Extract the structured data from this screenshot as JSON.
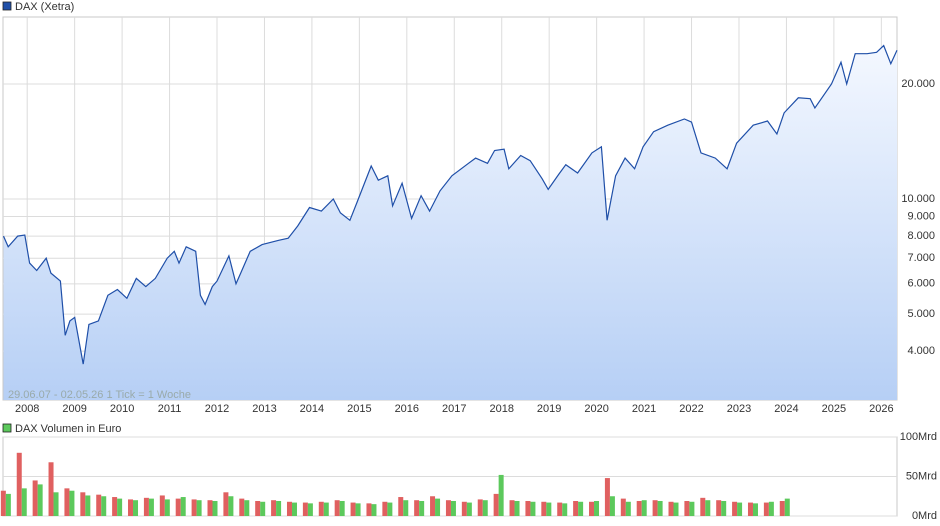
{
  "chart_data": [
    {
      "type": "line",
      "note": "29.06.07 - 02.05.26   1 Tick = 1 Woche",
      "log_scale": true,
      "grid": true,
      "xlim": [
        2007.49,
        2026.33
      ],
      "xticks": [
        2008,
        2009,
        2010,
        2011,
        2012,
        2013,
        2014,
        2015,
        2016,
        2017,
        2018,
        2019,
        2020,
        2021,
        2022,
        2023,
        2024,
        2025,
        2026
      ],
      "ylim": [
        2980,
        29940
      ],
      "yticks": [
        {
          "value": 4000,
          "label": "4.000"
        },
        {
          "value": 5000,
          "label": "5.000"
        },
        {
          "value": 6000,
          "label": "6.000"
        },
        {
          "value": 7000,
          "label": "7.000"
        },
        {
          "value": 8000,
          "label": "8.000"
        },
        {
          "value": 9000,
          "label": "9.000"
        },
        {
          "value": 10000,
          "label": "10.000"
        },
        {
          "value": 20000,
          "label": "20.000"
        }
      ],
      "series": [
        {
          "name": "DAX (Xetra)",
          "color": "#1f4fa8",
          "x": [
            2007.5,
            2007.6,
            2007.8,
            2007.95,
            2008.05,
            2008.2,
            2008.4,
            2008.5,
            2008.7,
            2008.8,
            2008.9,
            2009.0,
            2009.18,
            2009.3,
            2009.5,
            2009.7,
            2009.9,
            2010.1,
            2010.3,
            2010.5,
            2010.7,
            2010.95,
            2011.1,
            2011.2,
            2011.35,
            2011.55,
            2011.65,
            2011.75,
            2011.9,
            2012.0,
            2012.25,
            2012.4,
            2012.5,
            2012.7,
            2012.95,
            2013.3,
            2013.5,
            2013.7,
            2013.95,
            2014.2,
            2014.45,
            2014.6,
            2014.8,
            2014.95,
            2015.25,
            2015.4,
            2015.6,
            2015.7,
            2015.9,
            2016.1,
            2016.3,
            2016.48,
            2016.7,
            2016.95,
            2017.3,
            2017.45,
            2017.7,
            2017.85,
            2018.05,
            2018.15,
            2018.4,
            2018.6,
            2018.85,
            2018.98,
            2019.2,
            2019.35,
            2019.6,
            2019.9,
            2020.1,
            2020.22,
            2020.4,
            2020.6,
            2020.8,
            2020.98,
            2021.2,
            2021.5,
            2021.85,
            2022.0,
            2022.2,
            2022.5,
            2022.75,
            2022.95,
            2023.3,
            2023.6,
            2023.8,
            2023.95,
            2024.25,
            2024.5,
            2024.6,
            2024.95,
            2025.15,
            2025.27,
            2025.45,
            2025.7,
            2025.9,
            2026.05,
            2026.2,
            2026.33
          ],
          "values": [
            8000,
            7500,
            8000,
            8050,
            6800,
            6500,
            7000,
            6400,
            6100,
            4400,
            4800,
            4900,
            3700,
            4700,
            4800,
            5600,
            5800,
            5500,
            6200,
            5900,
            6200,
            7000,
            7300,
            6800,
            7500,
            7300,
            5600,
            5300,
            5900,
            6100,
            7100,
            6000,
            6400,
            7300,
            7600,
            7800,
            7900,
            8500,
            9500,
            9300,
            10000,
            9200,
            8800,
            9800,
            12200,
            11200,
            11500,
            9600,
            11000,
            8900,
            10200,
            9300,
            10500,
            11500,
            12400,
            12800,
            12400,
            13400,
            13500,
            12000,
            13000,
            12600,
            11300,
            10600,
            11600,
            12300,
            11700,
            13200,
            13700,
            8800,
            11500,
            12800,
            12000,
            13700,
            15000,
            15600,
            16200,
            15900,
            13200,
            12800,
            12000,
            14000,
            15600,
            16000,
            14800,
            16800,
            18400,
            18300,
            17300,
            20000,
            22800,
            20000,
            24000,
            24000,
            24200,
            25200,
            22600,
            24500
          ]
        }
      ]
    },
    {
      "type": "bar",
      "legend": "DAX Volumen in Euro",
      "legend_color": "#5cc95c",
      "grid": true,
      "xlim": [
        2007.49,
        2026.33
      ],
      "ylim": [
        0,
        100
      ],
      "yticks": [
        {
          "value": 0,
          "label": "0Mrd"
        },
        {
          "value": 50,
          "label": "50Mrd"
        },
        {
          "value": 100,
          "label": "100Mrd"
        }
      ],
      "x": [
        2007.55,
        2007.885,
        2008.22,
        2008.555,
        2008.89,
        2009.225,
        2009.56,
        2009.895,
        2010.23,
        2010.565,
        2010.9,
        2011.235,
        2011.57,
        2011.905,
        2012.24,
        2012.575,
        2012.91,
        2013.245,
        2013.58,
        2013.915,
        2014.25,
        2014.585,
        2014.92,
        2015.255,
        2015.59,
        2015.925,
        2016.26,
        2016.595,
        2016.93,
        2017.265,
        2017.6,
        2017.935,
        2018.27,
        2018.605,
        2018.94,
        2019.275,
        2019.61,
        2019.945,
        2020.28,
        2020.615,
        2020.95,
        2021.285,
        2021.62,
        2021.955,
        2022.29,
        2022.625,
        2022.96,
        2023.295,
        2023.63,
        2023.965
      ],
      "series": [
        {
          "color": "#e06060",
          "values": [
            32,
            80,
            45,
            68,
            35,
            30,
            27,
            24,
            21,
            23,
            26,
            22,
            21,
            20,
            30,
            22,
            19,
            20,
            18,
            17,
            18,
            20,
            17,
            16,
            18,
            24,
            20,
            25,
            20,
            18,
            21,
            28,
            20,
            19,
            18,
            17,
            19,
            18,
            48,
            22,
            19,
            20,
            18,
            19,
            23,
            20,
            18,
            17,
            17,
            19
          ]
        },
        {
          "color": "#5cc95c",
          "values": [
            28,
            35,
            40,
            30,
            32,
            26,
            25,
            22,
            20,
            22,
            21,
            24,
            20,
            19,
            25,
            20,
            18,
            19,
            17,
            16,
            17,
            19,
            16,
            15,
            17,
            20,
            19,
            22,
            19,
            17,
            20,
            52,
            19,
            18,
            17,
            16,
            18,
            19,
            25,
            18,
            20,
            19,
            17,
            18,
            20,
            19,
            17,
            16,
            18,
            22
          ]
        }
      ]
    }
  ]
}
